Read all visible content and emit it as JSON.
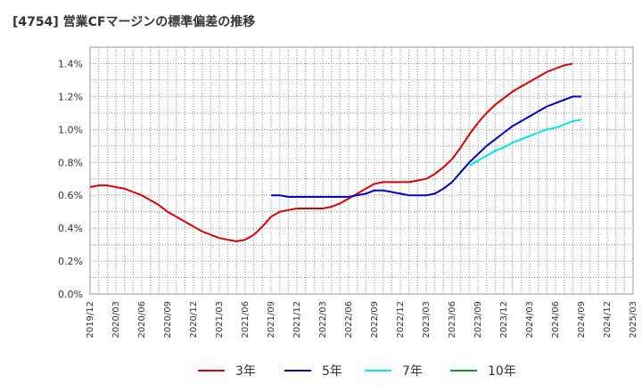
{
  "title": "[4754]  営業CFマージンの標準偏差の推移",
  "chart_data": {
    "type": "line",
    "title": "[4754]  営業CFマージンの標準偏差の推移",
    "xlabel": "",
    "ylabel": "",
    "ylim": [
      0,
      0.015
    ],
    "yticks": [
      "0.0%",
      "0.2%",
      "0.4%",
      "0.6%",
      "0.8%",
      "1.0%",
      "1.2%",
      "1.4%"
    ],
    "xticks": [
      "2019/12",
      "2020/03",
      "2020/06",
      "2020/09",
      "2020/12",
      "2021/03",
      "2021/06",
      "2021/09",
      "2021/12",
      "2022/03",
      "2022/06",
      "2022/09",
      "2022/12",
      "2023/03",
      "2023/06",
      "2023/09",
      "2023/12",
      "2024/03",
      "2024/06",
      "2024/09",
      "2024/12",
      "2025/03"
    ],
    "grid": true,
    "legend_position": "bottom",
    "series": [
      {
        "name": "3年",
        "color": "#dd0000",
        "values": [
          [
            "2019/12",
            0.0065
          ],
          [
            "2020/01",
            0.0066
          ],
          [
            "2020/02",
            0.0066
          ],
          [
            "2020/03",
            0.0065
          ],
          [
            "2020/04",
            0.0064
          ],
          [
            "2020/05",
            0.0062
          ],
          [
            "2020/06",
            0.006
          ],
          [
            "2020/07",
            0.0057
          ],
          [
            "2020/08",
            0.0054
          ],
          [
            "2020/09",
            0.005
          ],
          [
            "2020/10",
            0.0047
          ],
          [
            "2020/11",
            0.0044
          ],
          [
            "2020/12",
            0.0041
          ],
          [
            "2021/01",
            0.0038
          ],
          [
            "2021/02",
            0.0036
          ],
          [
            "2021/03",
            0.0034
          ],
          [
            "2021/04",
            0.0033
          ],
          [
            "2021/05",
            0.0032
          ],
          [
            "2021/06",
            0.0033
          ],
          [
            "2021/07",
            0.0036
          ],
          [
            "2021/08",
            0.0041
          ],
          [
            "2021/09",
            0.0047
          ],
          [
            "2021/10",
            0.005
          ],
          [
            "2021/11",
            0.0051
          ],
          [
            "2021/12",
            0.0052
          ],
          [
            "2022/01",
            0.0052
          ],
          [
            "2022/02",
            0.0052
          ],
          [
            "2022/03",
            0.0052
          ],
          [
            "2022/04",
            0.0053
          ],
          [
            "2022/05",
            0.0055
          ],
          [
            "2022/06",
            0.0058
          ],
          [
            "2022/07",
            0.0061
          ],
          [
            "2022/08",
            0.0064
          ],
          [
            "2022/09",
            0.0067
          ],
          [
            "2022/10",
            0.0068
          ],
          [
            "2022/11",
            0.0068
          ],
          [
            "2022/12",
            0.0068
          ],
          [
            "2023/01",
            0.0068
          ],
          [
            "2023/02",
            0.0069
          ],
          [
            "2023/03",
            0.007
          ],
          [
            "2023/04",
            0.0073
          ],
          [
            "2023/05",
            0.0077
          ],
          [
            "2023/06",
            0.0082
          ],
          [
            "2023/07",
            0.0089
          ],
          [
            "2023/08",
            0.0097
          ],
          [
            "2023/09",
            0.0104
          ],
          [
            "2023/10",
            0.011
          ],
          [
            "2023/11",
            0.0115
          ],
          [
            "2023/12",
            0.0119
          ],
          [
            "2024/01",
            0.0123
          ],
          [
            "2024/02",
            0.0126
          ],
          [
            "2024/03",
            0.0129
          ],
          [
            "2024/04",
            0.0132
          ],
          [
            "2024/05",
            0.0135
          ],
          [
            "2024/06",
            0.0137
          ],
          [
            "2024/07",
            0.0139
          ],
          [
            "2024/08",
            0.014
          ]
        ]
      },
      {
        "name": "5年",
        "color": "#0000cc",
        "values": [
          [
            "2021/09",
            0.006
          ],
          [
            "2021/10",
            0.006
          ],
          [
            "2021/11",
            0.0059
          ],
          [
            "2021/12",
            0.0059
          ],
          [
            "2022/01",
            0.0059
          ],
          [
            "2022/02",
            0.0059
          ],
          [
            "2022/03",
            0.0059
          ],
          [
            "2022/04",
            0.0059
          ],
          [
            "2022/05",
            0.0059
          ],
          [
            "2022/06",
            0.0059
          ],
          [
            "2022/07",
            0.006
          ],
          [
            "2022/08",
            0.0061
          ],
          [
            "2022/09",
            0.0063
          ],
          [
            "2022/10",
            0.0063
          ],
          [
            "2022/11",
            0.0062
          ],
          [
            "2022/12",
            0.0061
          ],
          [
            "2023/01",
            0.006
          ],
          [
            "2023/02",
            0.006
          ],
          [
            "2023/03",
            0.006
          ],
          [
            "2023/04",
            0.0061
          ],
          [
            "2023/05",
            0.0064
          ],
          [
            "2023/06",
            0.0068
          ],
          [
            "2023/07",
            0.0074
          ],
          [
            "2023/08",
            0.008
          ],
          [
            "2023/09",
            0.0085
          ],
          [
            "2023/10",
            0.009
          ],
          [
            "2023/11",
            0.0094
          ],
          [
            "2023/12",
            0.0098
          ],
          [
            "2024/01",
            0.0102
          ],
          [
            "2024/02",
            0.0105
          ],
          [
            "2024/03",
            0.0108
          ],
          [
            "2024/04",
            0.0111
          ],
          [
            "2024/05",
            0.0114
          ],
          [
            "2024/06",
            0.0116
          ],
          [
            "2024/07",
            0.0118
          ],
          [
            "2024/08",
            0.012
          ],
          [
            "2024/09",
            0.012
          ]
        ]
      },
      {
        "name": "7年",
        "color": "#00e5ee",
        "values": [
          [
            "2023/08",
            0.0078
          ],
          [
            "2023/09",
            0.0081
          ],
          [
            "2023/10",
            0.0084
          ],
          [
            "2023/11",
            0.0087
          ],
          [
            "2023/12",
            0.0089
          ],
          [
            "2024/01",
            0.0092
          ],
          [
            "2024/02",
            0.0094
          ],
          [
            "2024/03",
            0.0096
          ],
          [
            "2024/04",
            0.0098
          ],
          [
            "2024/05",
            0.01
          ],
          [
            "2024/06",
            0.0101
          ],
          [
            "2024/07",
            0.0103
          ],
          [
            "2024/08",
            0.0105
          ],
          [
            "2024/09",
            0.0106
          ]
        ]
      },
      {
        "name": "10年",
        "color": "#228b22",
        "values": []
      }
    ]
  }
}
